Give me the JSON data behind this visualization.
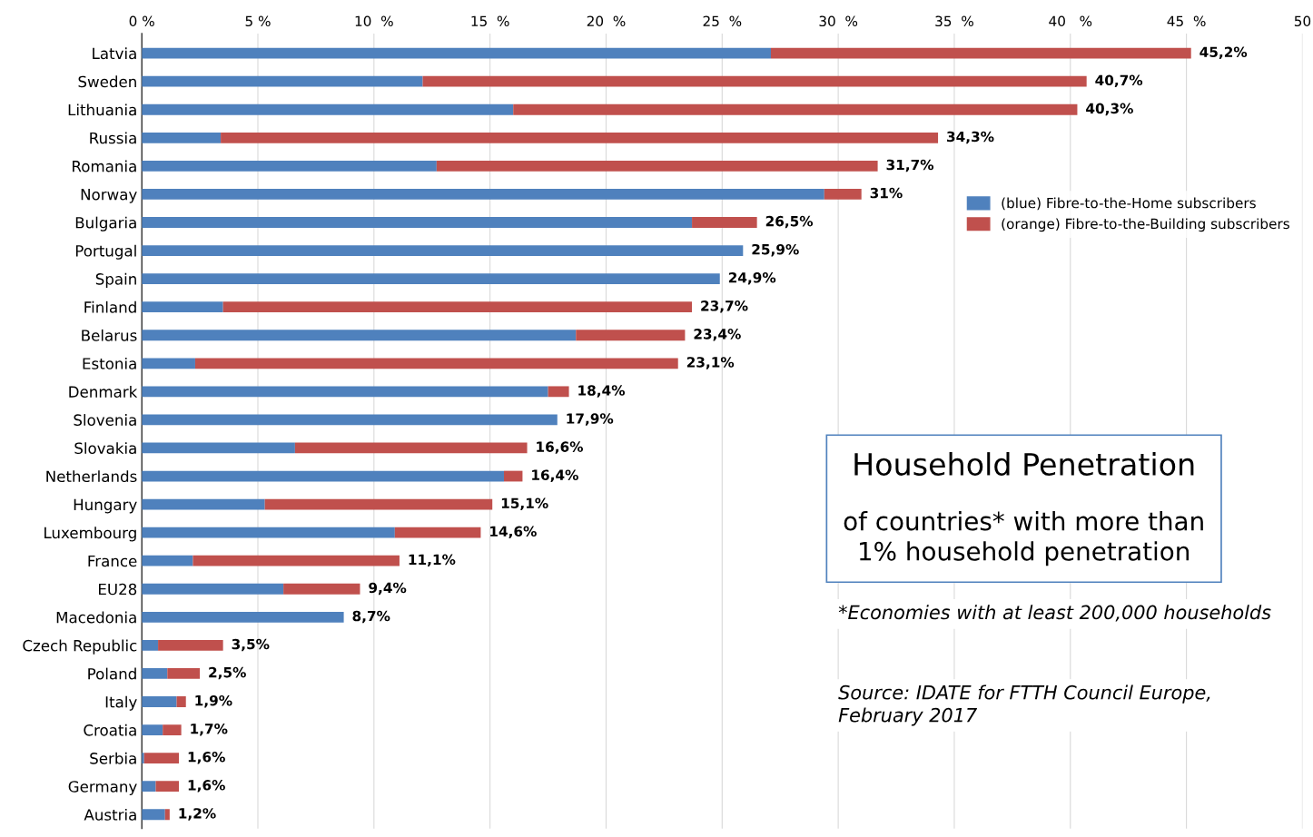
{
  "chart_data": {
    "type": "bar",
    "orientation": "horizontal",
    "stacked": true,
    "title": "Household Penetration",
    "subtitle": "of countries* with more than\n1% household penetration",
    "annotations": [
      "*Economies with at least 200,000 households",
      "Source: IDATE for FTTH Council Europe,\nFebruary 2017"
    ],
    "categories": [
      "Latvia",
      "Sweden",
      "Lithuania",
      "Russia",
      "Romania",
      "Norway",
      "Bulgaria",
      "Portugal",
      "Spain",
      "Finland",
      "Belarus",
      "Estonia",
      "Denmark",
      "Slovenia",
      "Slovakia",
      "Netherlands",
      "Hungary",
      "Luxembourg",
      "France",
      "EU28",
      "Macedonia",
      "Czech Republic",
      "Poland",
      "Italy",
      "Croatia",
      "Serbia",
      "Germany",
      "Austria"
    ],
    "series": [
      {
        "name": "(blue) Fibre-to-the-Home subscribers",
        "color": "#4f81bd",
        "values": [
          27.1,
          12.1,
          16.0,
          3.4,
          12.7,
          29.4,
          23.7,
          25.9,
          24.9,
          3.5,
          18.7,
          2.3,
          17.5,
          17.9,
          6.6,
          15.6,
          5.3,
          10.9,
          2.2,
          6.1,
          8.7,
          0.7,
          1.1,
          1.5,
          0.9,
          0.1,
          0.6,
          1.0
        ]
      },
      {
        "name": "(orange) Fibre-to-the-Building subscribers",
        "color": "#c0504d",
        "values": [
          18.1,
          28.6,
          24.3,
          30.9,
          19.0,
          1.6,
          2.8,
          0,
          0,
          20.2,
          4.7,
          20.8,
          0.9,
          0,
          10.0,
          0.8,
          9.8,
          3.7,
          8.9,
          3.3,
          0,
          2.8,
          1.4,
          0.4,
          0.8,
          1.5,
          1.0,
          0.2
        ]
      }
    ],
    "totals": [
      "45,2%",
      "40,7%",
      "40,3%",
      "34,3%",
      "31,7%",
      "31%",
      "26,5%",
      "25,9%",
      "24,9%",
      "23,7%",
      "23,4%",
      "23,1%",
      "18,4%",
      "17,9%",
      "16,6%",
      "16,4%",
      "15,1%",
      "14,6%",
      "11,1%",
      "9,4%",
      "8,7%",
      "3,5%",
      "2,5%",
      "1,9%",
      "1,7%",
      "1,6%",
      "1,6%",
      "1,2%"
    ],
    "xlim": [
      0,
      50
    ],
    "xticks": [
      {
        "value": 0,
        "label": "0 %"
      },
      {
        "value": 5,
        "label": "5 %"
      },
      {
        "value": 10,
        "label": "10  %"
      },
      {
        "value": 15,
        "label": "15  %"
      },
      {
        "value": 20,
        "label": "20  %"
      },
      {
        "value": 25,
        "label": "25  %"
      },
      {
        "value": 30,
        "label": "30  %"
      },
      {
        "value": 35,
        "label": "35  %"
      },
      {
        "value": 40,
        "label": "40   %"
      },
      {
        "value": 45,
        "label": "45  %"
      },
      50
    ],
    "grid": "x",
    "legend": "right"
  }
}
